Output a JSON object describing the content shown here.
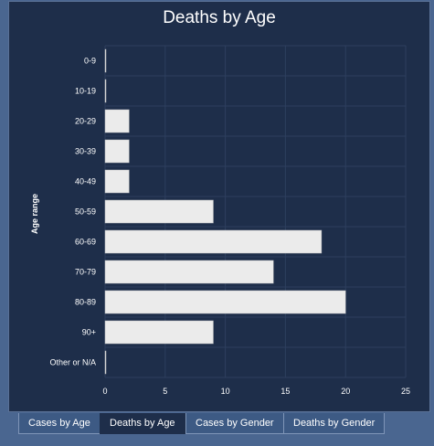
{
  "tabs": [
    {
      "label": "Cases by Age",
      "active": false
    },
    {
      "label": "Deaths by Age",
      "active": true
    },
    {
      "label": "Cases by Gender",
      "active": false
    },
    {
      "label": "Deaths by Gender",
      "active": false
    }
  ],
  "colors": {
    "background": "#4a6690",
    "panel": "#1e2e4a",
    "bar": "#ebebeb",
    "grid": "#2d3f5e",
    "text": "#ffffff"
  },
  "chart_data": {
    "type": "bar",
    "orientation": "horizontal",
    "title": "Deaths by Age",
    "ylabel": "Age range",
    "xlabel": "",
    "categories": [
      "0-9",
      "10-19",
      "20-29",
      "30-39",
      "40-49",
      "50-59",
      "60-69",
      "70-79",
      "80-89",
      "90+",
      "Other or N/A"
    ],
    "values": [
      0,
      0,
      2,
      2,
      2,
      9,
      18,
      14,
      20,
      9,
      0
    ],
    "xlim": [
      0,
      25
    ],
    "xticks": [
      0,
      5,
      10,
      15,
      20,
      25
    ],
    "grid": true,
    "legend": "none"
  }
}
